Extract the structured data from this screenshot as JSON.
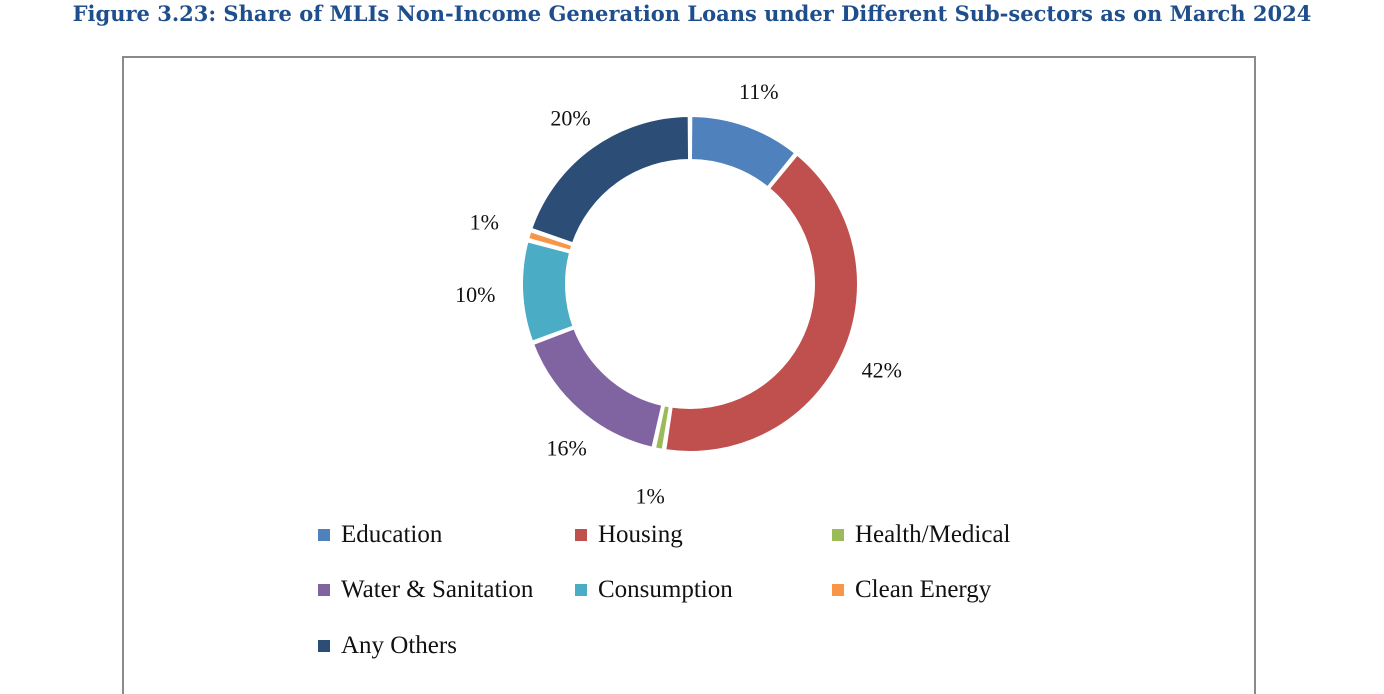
{
  "title": "Figure 3.23: Share of MLIs Non-Income Generation Loans under Different Sub-sectors as on March 2024",
  "chart_data": {
    "type": "pie",
    "subtype": "donut",
    "unit": "%",
    "categories": [
      "Education",
      "Housing",
      "Health/Medical",
      "Water & Sanitation",
      "Consumption",
      "Clean Energy",
      "Any Others"
    ],
    "values": [
      11,
      42,
      1,
      16,
      10,
      1,
      20
    ],
    "labels": [
      "11%",
      "42%",
      "1%",
      "16%",
      "10%",
      "1%",
      "20%"
    ],
    "colors": [
      "#4f81bd",
      "#c0504d",
      "#9bbb59",
      "#8064a2",
      "#4bacc6",
      "#f79646",
      "#2c4d75"
    ],
    "legend": {
      "position": "bottom",
      "items": [
        "Education",
        "Housing",
        "Health/Medical",
        "Water & Sanitation",
        "Consumption",
        "Clean Energy",
        "Any Others"
      ]
    }
  }
}
